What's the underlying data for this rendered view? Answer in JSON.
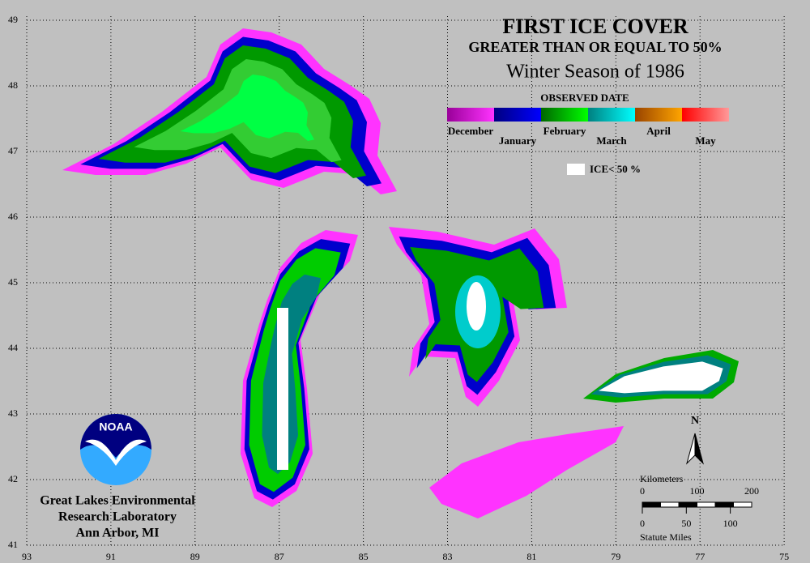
{
  "title": "FIRST ICE COVER",
  "subtitle": "GREATER THAN OR EQUAL TO 50%",
  "season": "Winter Season of 1986",
  "legend": {
    "title": "OBSERVED DATE",
    "items": [
      {
        "label": "December",
        "colors": [
          "#990099",
          "#ff33ff"
        ]
      },
      {
        "label": "January",
        "colors": [
          "#000080",
          "#0000ff"
        ]
      },
      {
        "label": "February",
        "colors": [
          "#006600",
          "#00ff00"
        ]
      },
      {
        "label": "March",
        "colors": [
          "#008080",
          "#00ffff"
        ]
      },
      {
        "label": "April",
        "colors": [
          "#994400",
          "#ffa500"
        ]
      },
      {
        "label": "May",
        "colors": [
          "#ff0000",
          "#ff9999"
        ]
      }
    ],
    "ice_label": "ICE< 50 %",
    "ice_color": "#ffffff"
  },
  "grid": {
    "lat_ticks": [
      41,
      42,
      43,
      44,
      45,
      46,
      47,
      48,
      49
    ],
    "lon_ticks": [
      93,
      91,
      89,
      87,
      85,
      83,
      81,
      79,
      77,
      75
    ]
  },
  "scale": {
    "km_label": "Kilometers",
    "km_ticks": [
      0,
      100,
      200
    ],
    "mile_label": "Statute Miles",
    "mile_ticks": [
      0,
      50,
      100
    ]
  },
  "north": "N",
  "noaa": "NOAA",
  "credits": [
    "Great Lakes Environmental",
    "Research Laboratory",
    "Ann Arbor, MI"
  ]
}
